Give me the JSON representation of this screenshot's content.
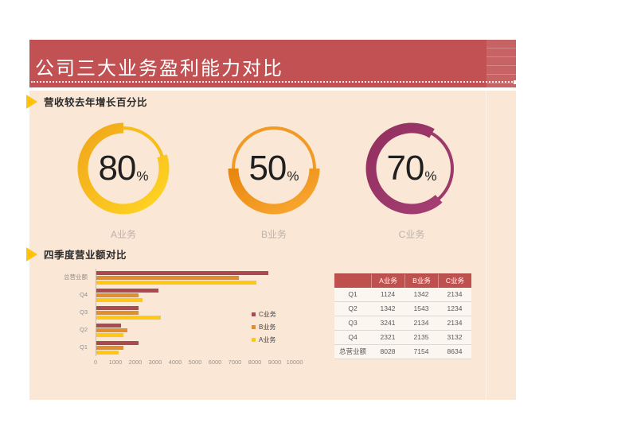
{
  "header": {
    "title": "公司三大业务盈利能力对比"
  },
  "sections": [
    {
      "label": "营收较去年增长百分比"
    },
    {
      "label": "四季度营业额对比"
    }
  ],
  "colors": {
    "header_red": "#C15152",
    "panel_cream": "#FBE7D6",
    "section_marker_yellow": "#FFC30F",
    "table_header_red": "#C0504D"
  },
  "chart_data": [
    {
      "type": "donut_set",
      "title": "营收较去年增长百分比",
      "rings": [
        {
          "label": "A业务",
          "value": 80,
          "unit": "%",
          "color_start": "#F1A61A",
          "color_end": "#FFD622",
          "thin_color": "#F7BD19",
          "arc_start": 72,
          "arc_end": 360
        },
        {
          "label": "B业务",
          "value": 50,
          "unit": "%",
          "color_start": "#E8850E",
          "color_end": "#F9A932",
          "thin_color": "#F29A26",
          "arc_start": 90,
          "arc_end": 270
        },
        {
          "label": "C业务",
          "value": 70,
          "unit": "%",
          "color_start": "#93305F",
          "color_end": "#A43E73",
          "thin_color": "#9C3A6C",
          "arc_start": 138,
          "arc_end": 390
        }
      ]
    },
    {
      "type": "bar",
      "title": "四季度营业额对比",
      "orientation": "horizontal",
      "categories": [
        "总营业额",
        "Q4",
        "Q3",
        "Q2",
        "Q1"
      ],
      "series": [
        {
          "name": "C业务",
          "color": "#A94A50",
          "values": [
            8634,
            3132,
            2134,
            1234,
            2134
          ]
        },
        {
          "name": "B业务",
          "color": "#DF8F2E",
          "values": [
            7154,
            2135,
            2134,
            1543,
            1342
          ]
        },
        {
          "name": "A业务",
          "color": "#FFC716",
          "values": [
            8028,
            2321,
            3241,
            1342,
            1124
          ]
        }
      ],
      "xlim": [
        0,
        10000
      ],
      "x_ticks": [
        0,
        1000,
        2000,
        3000,
        4000,
        5000,
        6000,
        7000,
        8000,
        9000,
        10000
      ],
      "legend_position": "right-inside",
      "grid": false
    }
  ],
  "table": {
    "headers": [
      "",
      "A业务",
      "B业务",
      "C业务"
    ],
    "rows": [
      [
        "Q1",
        "1124",
        "1342",
        "2134"
      ],
      [
        "Q2",
        "1342",
        "1543",
        "1234"
      ],
      [
        "Q3",
        "3241",
        "2134",
        "2134"
      ],
      [
        "Q4",
        "2321",
        "2135",
        "3132"
      ],
      [
        "总营业额",
        "8028",
        "7154",
        "8634"
      ]
    ]
  }
}
